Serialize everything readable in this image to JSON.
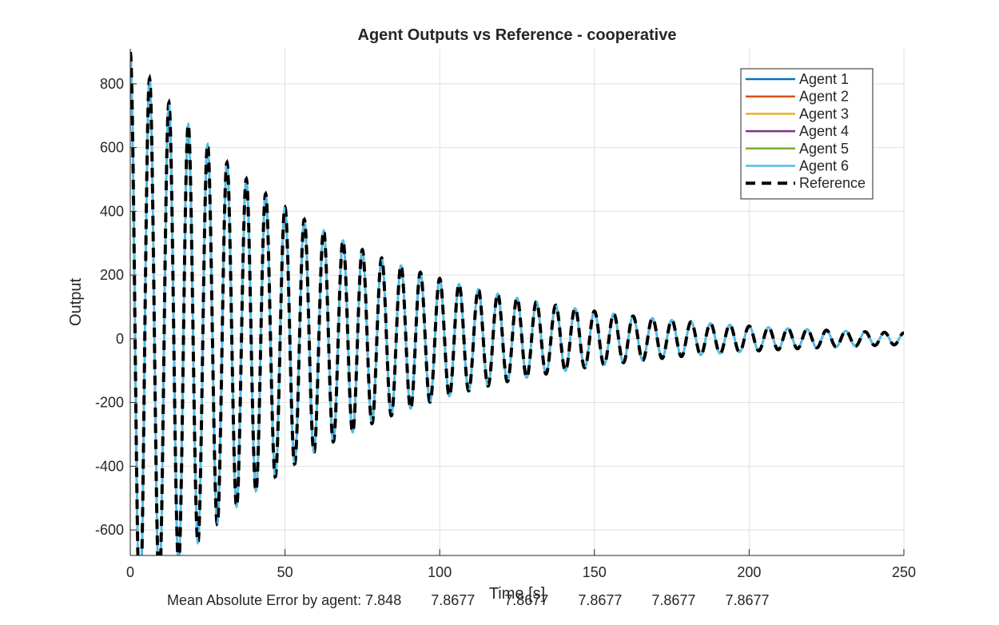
{
  "chart_data": {
    "type": "line",
    "title": "Agent Outputs vs Reference - cooperative",
    "xlabel": "Time [s]",
    "ylabel": "Output",
    "xlim": [
      0,
      250
    ],
    "ylim": [
      -680,
      910
    ],
    "xticks": [
      0,
      50,
      100,
      150,
      200,
      250
    ],
    "yticks": [
      -600,
      -400,
      -200,
      0,
      200,
      400,
      600,
      800
    ],
    "grid": true,
    "legend_position": "top-right",
    "signal_model": {
      "amplitude": 900,
      "decay_rate": 0.0156,
      "period": 6.25,
      "phase": "cosine",
      "t_start": 0,
      "t_end": 250
    },
    "series": [
      {
        "name": "Agent 1",
        "color": "#0072BD",
        "style": "solid"
      },
      {
        "name": "Agent 2",
        "color": "#D95319",
        "style": "solid"
      },
      {
        "name": "Agent 3",
        "color": "#EDB120",
        "style": "solid"
      },
      {
        "name": "Agent 4",
        "color": "#7E2F8E",
        "style": "solid"
      },
      {
        "name": "Agent 5",
        "color": "#77AC30",
        "style": "solid"
      },
      {
        "name": "Agent 6",
        "color": "#4DBEEE",
        "style": "solid"
      },
      {
        "name": "Reference",
        "color": "#000000",
        "style": "dashed"
      }
    ]
  },
  "footer": {
    "label": "Mean Absolute Error by agent: ",
    "values": [
      "7.848",
      "7.8677",
      "7.8677",
      "7.8677",
      "7.8677",
      "7.8677"
    ]
  }
}
